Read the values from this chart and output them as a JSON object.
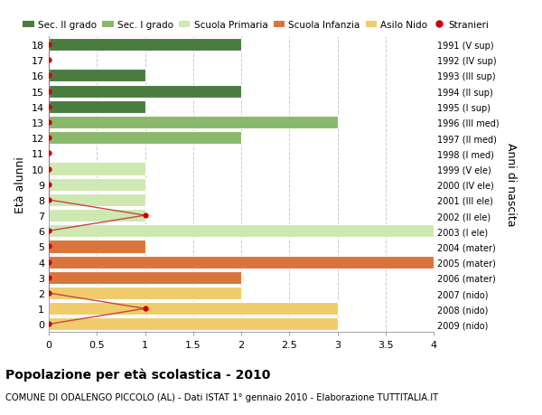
{
  "ages": [
    18,
    17,
    16,
    15,
    14,
    13,
    12,
    11,
    10,
    9,
    8,
    7,
    6,
    5,
    4,
    3,
    2,
    1,
    0
  ],
  "years": [
    "1991 (V sup)",
    "1992 (IV sup)",
    "1993 (III sup)",
    "1994 (II sup)",
    "1995 (I sup)",
    "1996 (III med)",
    "1997 (II med)",
    "1998 (I med)",
    "1999 (V ele)",
    "2000 (IV ele)",
    "2001 (III ele)",
    "2002 (II ele)",
    "2003 (I ele)",
    "2004 (mater)",
    "2005 (mater)",
    "2006 (mater)",
    "2007 (nido)",
    "2008 (nido)",
    "2009 (nido)"
  ],
  "bar_values": [
    2,
    0,
    1,
    2,
    1,
    3,
    2,
    0,
    1,
    1,
    1,
    1,
    4,
    1,
    4,
    2,
    2,
    3,
    3
  ],
  "bar_colors": [
    "#4a7c40",
    "#4a7c40",
    "#4a7c40",
    "#4a7c40",
    "#4a7c40",
    "#89b96a",
    "#89b96a",
    "#89b96a",
    "#cde8b0",
    "#cde8b0",
    "#cde8b0",
    "#cde8b0",
    "#cde8b0",
    "#d9753a",
    "#d9753a",
    "#d9753a",
    "#f0cc6a",
    "#f0cc6a",
    "#f0cc6a"
  ],
  "stranieri_x": [
    0,
    0,
    0,
    0,
    0,
    0,
    0,
    0,
    0,
    0,
    0,
    1,
    0,
    0,
    0,
    0,
    0,
    1,
    0
  ],
  "title": "Popolazione per età scolastica - 2010",
  "subtitle": "COMUNE DI ODALENGO PICCOLO (AL) - Dati ISTAT 1° gennaio 2010 - Elaborazione TUTTITALIA.IT",
  "ylabel_left": "Età alunni",
  "ylabel_right": "Anni di nascita",
  "xlim": [
    0,
    4.0
  ],
  "xticks": [
    0,
    0.5,
    1.0,
    1.5,
    2.0,
    2.5,
    3.0,
    3.5,
    4.0
  ],
  "legend_labels": [
    "Sec. II grado",
    "Sec. I grado",
    "Scuola Primaria",
    "Scuola Infanzia",
    "Asilo Nido",
    "Stranieri"
  ],
  "legend_colors": [
    "#4a7c40",
    "#89b96a",
    "#cde8b0",
    "#d9753a",
    "#f0cc6a",
    "#cc0000"
  ],
  "bg_color": "#ffffff",
  "grid_color": "#cccccc",
  "bar_height": 0.82,
  "stranieri_color": "#cc0000",
  "stranieri_line_color": "#cc4444"
}
